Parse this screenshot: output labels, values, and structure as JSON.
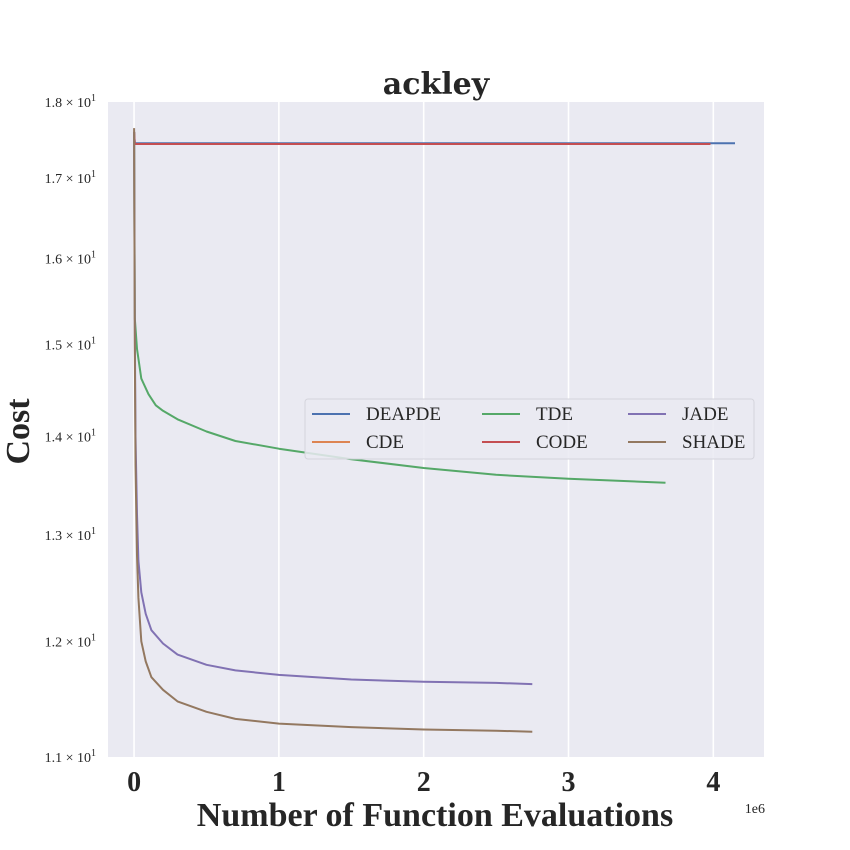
{
  "chart_data": {
    "type": "line",
    "title": "ackley",
    "xlabel": "Number of Function Evaluations",
    "ylabel": "Cost",
    "x_offset_label": "1e6",
    "xlim": [
      -0.18,
      4.35
    ],
    "ylim": [
      11.0,
      18.0
    ],
    "yscale": "log",
    "grid": true,
    "legend_position": "center-right",
    "legend_columns": 3,
    "xticks": [
      {
        "value": 0,
        "label": "0"
      },
      {
        "value": 1,
        "label": "1"
      },
      {
        "value": 2,
        "label": "2"
      },
      {
        "value": 3,
        "label": "3"
      },
      {
        "value": 4,
        "label": "4"
      }
    ],
    "yticks": [
      {
        "value": 11,
        "mantissa": "1.1",
        "base": "10",
        "exponent": "1"
      },
      {
        "value": 12,
        "mantissa": "1.2",
        "base": "10",
        "exponent": "1"
      },
      {
        "value": 13,
        "mantissa": "1.3",
        "base": "10",
        "exponent": "1"
      },
      {
        "value": 14,
        "mantissa": "1.4",
        "base": "10",
        "exponent": "1"
      },
      {
        "value": 15,
        "mantissa": "1.5",
        "base": "10",
        "exponent": "1"
      },
      {
        "value": 16,
        "mantissa": "1.6",
        "base": "10",
        "exponent": "1"
      },
      {
        "value": 17,
        "mantissa": "1.7",
        "base": "10",
        "exponent": "1"
      },
      {
        "value": 18,
        "mantissa": "1.8",
        "base": "10",
        "exponent": "1"
      }
    ],
    "series": [
      {
        "name": "DEAPDE",
        "color": "#4c72b0",
        "x": [
          0,
          0.005,
          0.02,
          1.0,
          2.0,
          3.0,
          4.0,
          4.15
        ],
        "y": [
          17.6,
          17.45,
          17.45,
          17.45,
          17.45,
          17.45,
          17.45,
          17.45
        ]
      },
      {
        "name": "CDE",
        "color": "#dd8452",
        "x": [
          0,
          0.005,
          0.02,
          1.0,
          2.0,
          3.0,
          3.98
        ],
        "y": [
          17.6,
          17.44,
          17.44,
          17.44,
          17.44,
          17.44,
          17.44
        ]
      },
      {
        "name": "TDE",
        "color": "#55a868",
        "x": [
          0,
          0.005,
          0.02,
          0.05,
          0.1,
          0.15,
          0.2,
          0.3,
          0.5,
          0.7,
          1.0,
          1.5,
          2.0,
          2.5,
          3.0,
          3.5,
          3.67
        ],
        "y": [
          17.6,
          15.3,
          14.95,
          14.62,
          14.45,
          14.33,
          14.27,
          14.18,
          14.05,
          13.95,
          13.87,
          13.76,
          13.67,
          13.6,
          13.56,
          13.53,
          13.52
        ]
      },
      {
        "name": "CODE",
        "color": "#c44e52",
        "x": [
          0,
          0.005,
          0.02,
          1.0,
          2.0,
          3.0,
          3.98
        ],
        "y": [
          17.6,
          17.44,
          17.44,
          17.44,
          17.44,
          17.44,
          17.44
        ]
      },
      {
        "name": "JADE",
        "color": "#8172b3",
        "x": [
          0,
          0.005,
          0.01,
          0.02,
          0.03,
          0.05,
          0.08,
          0.12,
          0.2,
          0.3,
          0.5,
          0.7,
          1.0,
          1.5,
          2.0,
          2.5,
          2.75
        ],
        "y": [
          17.6,
          15.2,
          14.0,
          13.2,
          12.75,
          12.45,
          12.25,
          12.1,
          11.98,
          11.88,
          11.79,
          11.74,
          11.7,
          11.66,
          11.64,
          11.63,
          11.62
        ]
      },
      {
        "name": "SHADE",
        "color": "#937860",
        "x": [
          0,
          0.005,
          0.01,
          0.02,
          0.03,
          0.05,
          0.08,
          0.12,
          0.2,
          0.3,
          0.5,
          0.7,
          1.0,
          1.5,
          2.0,
          2.5,
          2.75
        ],
        "y": [
          17.65,
          15.0,
          13.7,
          12.8,
          12.4,
          12.0,
          11.82,
          11.68,
          11.57,
          11.47,
          11.38,
          11.32,
          11.28,
          11.25,
          11.23,
          11.22,
          11.21
        ]
      }
    ]
  }
}
